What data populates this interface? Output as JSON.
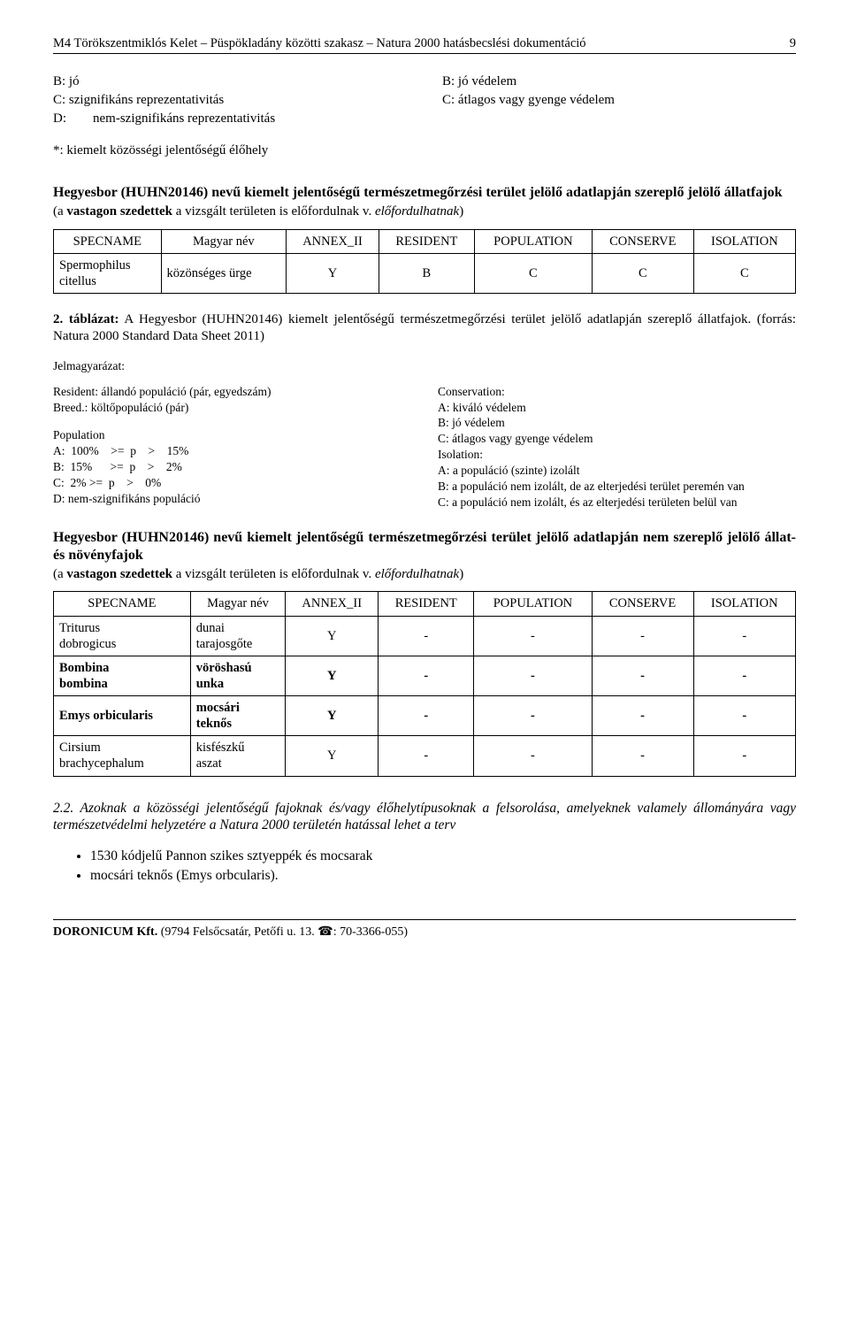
{
  "header": {
    "title": "M4 Törökszentmiklós Kelet – Püspökladány közötti szakasz – Natura 2000 hatásbecslési dokumentáció",
    "page_number": "9"
  },
  "top_left_col": {
    "l1": "B: jó",
    "l2": "C: szignifikáns reprezentativitás",
    "l3": "D:        nem-szignifikáns reprezentativitás"
  },
  "top_right_col": {
    "l1": "B: jó védelem",
    "l2": "C: átlagos vagy gyenge védelem"
  },
  "star_note": "*: kiemelt közösségi jelentőségű élőhely",
  "heading1": {
    "line1": "Hegyesbor (HUHN20146) nevű kiemelt jelentőségű természetmegőrzési terület jelölő adatlapján szereplő jelölő állatfajok",
    "line2_pre": "(a ",
    "line2_bold": "vastagon szedettek",
    "line2_mid": " a vizsgált területen is előfordulnak v. ",
    "line2_italic": "előfordulhatnak",
    "line2_post": ")"
  },
  "table1": {
    "headers": [
      "SPECNAME",
      "Magyar név",
      "ANNEX_II",
      "RESIDENT",
      "POPULATION",
      "CONSERVE",
      "ISOLATION"
    ],
    "rows": [
      {
        "c0a": "Spermophilus",
        "c0b": "citellus",
        "c1": "közönséges ürge",
        "c2": "Y",
        "c3": "B",
        "c4": "C",
        "c5": "C",
        "c6": "C",
        "bold": false
      }
    ]
  },
  "caption1": {
    "bold": "2. táblázat:",
    "rest": " A Hegyesbor (HUHN20146) kiemelt jelentőségű természetmegőrzési terület jelölő adatlapján szereplő állatfajok. (forrás: Natura 2000 Standard Data Sheet 2011)"
  },
  "legend_title": "Jelmagyarázat:",
  "legend_left_top": {
    "l1": "Resident: állandó populáció (pár, egyedszám)",
    "l2": "Breed.: költőpopuláció (pár)"
  },
  "legend_left_bottom": {
    "l0": "Population",
    "l1": "A:  100%    >=  p    >    15%",
    "l2": "B:  15%      >=  p    >    2%",
    "l3": "C:  2% >=  p    >    0%",
    "l4": "D:  nem-szignifikáns populáció"
  },
  "legend_right_top": {
    "l0": "Conservation:",
    "l1": "A: kiváló védelem",
    "l2": "B: jó védelem",
    "l3": "C: átlagos vagy gyenge védelem"
  },
  "legend_right_bottom": {
    "l0": "Isolation:",
    "l1": "A: a populáció (szinte) izolált",
    "l2": "B: a populáció nem izolált, de az elterjedési terület peremén van",
    "l3": "C: a populáció nem izolált, és az elterjedési területen belül van"
  },
  "heading2": {
    "line1": "Hegyesbor (HUHN20146) nevű kiemelt jelentőségű természetmegőrzési terület jelölő adatlapján nem szereplő jelölő állat- és növényfajok",
    "line2_pre": "(a ",
    "line2_bold": "vastagon szedettek",
    "line2_mid": " a vizsgált területen is előfordulnak v. ",
    "line2_italic": "előfordulhatnak",
    "line2_post": ")"
  },
  "table2": {
    "headers": [
      "SPECNAME",
      "Magyar név",
      "ANNEX_II",
      "RESIDENT",
      "POPULATION",
      "CONSERVE",
      "ISOLATION"
    ],
    "rows": [
      {
        "c0a": "Triturus",
        "c0b": "dobrogicus",
        "c1a": "dunai",
        "c1b": "tarajosgőte",
        "c2": "Y",
        "c3": "-",
        "c4": "-",
        "c5": "-",
        "c6": "-",
        "bold": false
      },
      {
        "c0a": "Bombina",
        "c0b": "bombina",
        "c1a": "vöröshasú",
        "c1b": "unka",
        "c2": "Y",
        "c3": "-",
        "c4": "-",
        "c5": "-",
        "c6": "-",
        "bold": true
      },
      {
        "c0a": "Emys orbicularis",
        "c0b": "",
        "c1a": "mocsári",
        "c1b": "teknős",
        "c2": "Y",
        "c3": "-",
        "c4": "-",
        "c5": "-",
        "c6": "-",
        "bold": true
      },
      {
        "c0a": "Cirsium",
        "c0b": "brachycephalum",
        "c1a": "kisfészkű",
        "c1b": "aszat",
        "c2": "Y",
        "c3": "-",
        "c4": "-",
        "c5": "-",
        "c6": "-",
        "bold": false
      }
    ]
  },
  "para22": "2.2. Azoknak a közösségi jelentőségű fajoknak és/vagy élőhelytípusoknak a felsorolása, amelyeknek valamely állományára vagy természetvédelmi helyzetére a Natura 2000 területén hatással lehet a terv",
  "bullets": {
    "b1": "1530 kódjelű Pannon szikes sztyeppék és mocsarak",
    "b2": "mocsári teknős (Emys orbcularis)."
  },
  "footer": {
    "company": "DORONICUM Kft.",
    "address": " (9794 Felsőcsatár, Petőfi u. 13. ",
    "phone_label": "☎",
    "phone": ": 70-3366-055)"
  }
}
